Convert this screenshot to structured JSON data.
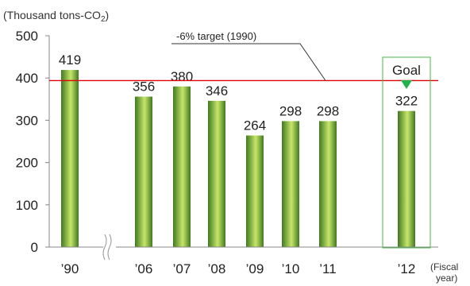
{
  "chart_data": {
    "type": "bar",
    "unit_label_prefix": "(Thousand tons-CO",
    "unit_label_sub": "2",
    "unit_label_suffix": ")",
    "categories": [
      "’90",
      "’06",
      "’07",
      "’08",
      "’09",
      "’10",
      "’11",
      "’12"
    ],
    "values": [
      419,
      356,
      380,
      346,
      264,
      298,
      298,
      322
    ],
    "ylim": [
      0,
      500
    ],
    "yticks": [
      0,
      100,
      200,
      300,
      400,
      500
    ],
    "axis_break_after_index": 0,
    "target": {
      "label": "-6% target (1990)",
      "value": 394,
      "color": "#e00000"
    },
    "goal": {
      "label": "Goal",
      "category_index": 7,
      "marker_color": "#22b24c",
      "box_color": "#44b840"
    },
    "xlabel_line1": "(Fiscal",
    "xlabel_line2": "year)",
    "colors": {
      "bar_dark": "#3f7a1f",
      "bar_light": "#c8e56a",
      "axis": "#888888"
    }
  }
}
